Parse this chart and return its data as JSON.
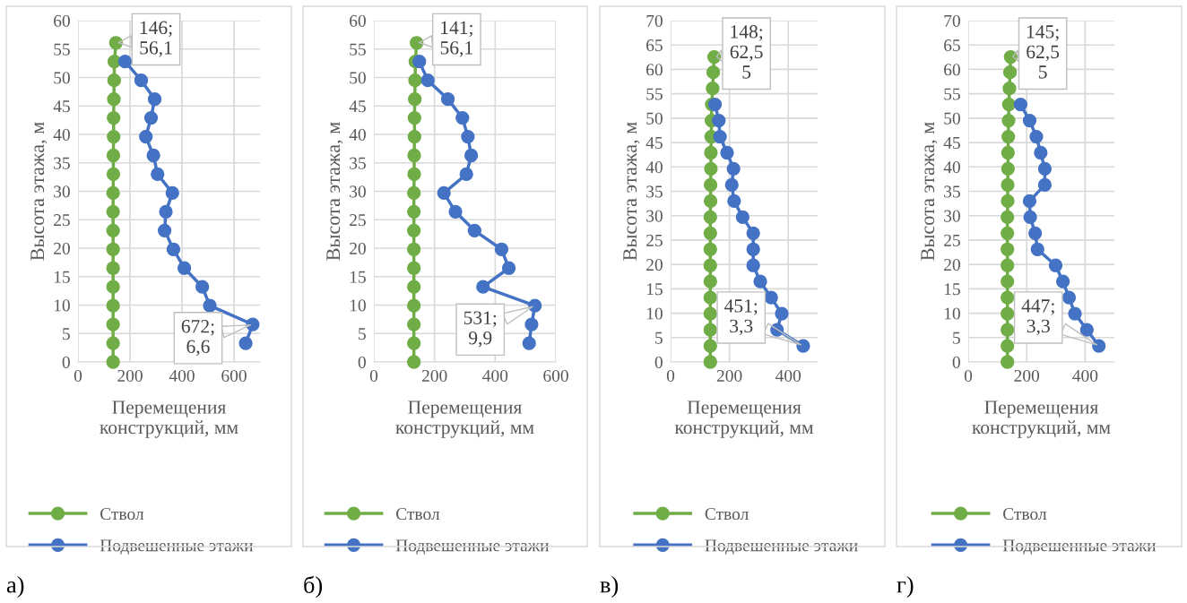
{
  "chart_data": [
    {
      "type": "line",
      "xlabel": "Перемещения\nконструкций, мм",
      "ylabel": "Высота этажа, м",
      "xlim": [
        0,
        700
      ],
      "xticks": [
        0,
        200,
        400,
        600
      ],
      "ylim": [
        0,
        60
      ],
      "yticks": [
        0,
        5,
        10,
        15,
        20,
        25,
        30,
        35,
        40,
        45,
        50,
        55,
        60
      ],
      "grid": true,
      "legend": "bottom",
      "marker": "circle",
      "series": [
        {
          "name": "Ствол",
          "color": "#70ad47",
          "x": [
            135,
            135,
            135,
            135,
            135,
            135,
            135,
            135,
            135,
            135,
            136,
            136,
            137,
            137,
            138,
            139,
            140,
            146
          ],
          "values": [
            0,
            3.3,
            6.6,
            9.9,
            13.2,
            16.5,
            19.8,
            23.1,
            26.4,
            29.7,
            33,
            36.3,
            39.6,
            42.9,
            46.2,
            49.5,
            52.8,
            56.1
          ]
        },
        {
          "name": "Подвешенные этажи",
          "color": "#4472c4",
          "x": [
            645,
            672,
            507,
            478,
            409,
            367,
            333,
            338,
            363,
            306,
            290,
            261,
            281,
            295,
            243,
            181
          ],
          "values": [
            3.3,
            6.6,
            9.9,
            13.2,
            16.5,
            19.8,
            23.1,
            26.4,
            29.7,
            33,
            36.3,
            39.6,
            42.9,
            46.2,
            49.5,
            52.8
          ]
        }
      ],
      "annotations": [
        {
          "text": "146;\n56,1",
          "x": 146,
          "y": 56.1
        },
        {
          "text": "672;\n6,6",
          "x": 672,
          "y": 6.6
        },
        "а)"
      ]
    },
    {
      "type": "line",
      "xlabel": "Перемещения\nконструкций, мм",
      "ylabel": "Высота этажа, м",
      "xlim": [
        0,
        600
      ],
      "xticks": [
        0,
        200,
        400,
        600
      ],
      "ylim": [
        0,
        60
      ],
      "yticks": [
        0,
        5,
        10,
        15,
        20,
        25,
        30,
        35,
        40,
        45,
        50,
        55,
        60
      ],
      "grid": true,
      "legend": "bottom",
      "marker": "circle",
      "series": [
        {
          "name": "Ствол",
          "color": "#70ad47",
          "x": [
            132,
            132,
            132,
            132,
            132,
            132,
            132,
            132,
            132,
            132,
            133,
            133,
            134,
            134,
            135,
            136,
            137,
            141
          ],
          "values": [
            0,
            3.3,
            6.6,
            9.9,
            13.2,
            16.5,
            19.8,
            23.1,
            26.4,
            29.7,
            33,
            36.3,
            39.6,
            42.9,
            46.2,
            49.5,
            52.8,
            56.1
          ]
        },
        {
          "name": "Подвешенные этажи",
          "color": "#4472c4",
          "x": [
            512,
            520,
            531,
            360,
            445,
            421,
            332,
            269,
            231,
            305,
            321,
            310,
            292,
            244,
            178,
            150
          ],
          "values": [
            3.3,
            6.6,
            9.9,
            13.2,
            16.5,
            19.8,
            23.1,
            26.4,
            29.7,
            33,
            36.3,
            39.6,
            42.9,
            46.2,
            49.5,
            52.8
          ]
        }
      ],
      "annotations": [
        {
          "text": "141;\n56,1",
          "x": 141,
          "y": 56.1
        },
        {
          "text": "531;\n9,9",
          "x": 531,
          "y": 9.9
        },
        "б)"
      ]
    },
    {
      "type": "line",
      "xlabel": "Перемещения\nконструкций, мм",
      "ylabel": "Высота этажа, м",
      "xlim": [
        0,
        500
      ],
      "xticks": [
        0,
        200,
        400
      ],
      "ylim": [
        0,
        70
      ],
      "yticks": [
        0,
        5,
        10,
        15,
        20,
        25,
        30,
        35,
        40,
        45,
        50,
        55,
        60,
        65,
        70
      ],
      "grid": true,
      "legend": "bottom",
      "marker": "circle",
      "series": [
        {
          "name": "Ствол",
          "color": "#70ad47",
          "x": [
            135,
            135,
            135,
            135,
            135,
            135,
            135,
            135,
            135,
            135,
            136,
            136,
            137,
            137,
            138,
            139,
            140,
            143,
            145,
            148
          ],
          "values": [
            0,
            3.3,
            6.6,
            9.9,
            13.2,
            16.5,
            19.8,
            23.1,
            26.4,
            29.7,
            33,
            36.3,
            39.6,
            42.9,
            46.2,
            49.5,
            52.8,
            56.1,
            59.4,
            62.55
          ]
        },
        {
          "name": "Подвешенные этажи",
          "color": "#4472c4",
          "x": [
            451,
            362,
            378,
            342,
            305,
            281,
            281,
            281,
            245,
            216,
            208,
            214,
            192,
            168,
            164,
            151
          ],
          "values": [
            3.3,
            6.6,
            9.9,
            13.2,
            16.5,
            19.8,
            23.1,
            26.4,
            29.7,
            33,
            36.3,
            39.6,
            42.9,
            46.2,
            49.5,
            52.8
          ]
        }
      ],
      "annotations": [
        {
          "text": "148;\n62,5\n5",
          "x": 148,
          "y": 62.55
        },
        {
          "text": "451;\n3,3",
          "x": 451,
          "y": 3.3
        },
        "в)"
      ]
    },
    {
      "type": "line",
      "xlabel": "Перемещения\nконструкций, мм",
      "ylabel": "Высота этажа, м",
      "xlim": [
        0,
        500
      ],
      "xticks": [
        0,
        200,
        400
      ],
      "ylim": [
        0,
        70
      ],
      "yticks": [
        0,
        5,
        10,
        15,
        20,
        25,
        30,
        35,
        40,
        45,
        50,
        55,
        60,
        65,
        70
      ],
      "grid": true,
      "legend": "bottom",
      "marker": "circle",
      "series": [
        {
          "name": "Ствол",
          "color": "#70ad47",
          "x": [
            134,
            134,
            134,
            134,
            134,
            134,
            134,
            134,
            134,
            134,
            135,
            135,
            136,
            136,
            137,
            138,
            139,
            141,
            143,
            145
          ],
          "values": [
            0,
            3.3,
            6.6,
            9.9,
            13.2,
            16.5,
            19.8,
            23.1,
            26.4,
            29.7,
            33,
            36.3,
            39.6,
            42.9,
            46.2,
            49.5,
            52.8,
            56.1,
            59.4,
            62.55
          ]
        },
        {
          "name": "Подвешенные этажи",
          "color": "#4472c4",
          "x": [
            447,
            406,
            365,
            345,
            324,
            299,
            237,
            229,
            212,
            210,
            262,
            262,
            248,
            233,
            210,
            179
          ],
          "values": [
            3.3,
            6.6,
            9.9,
            13.2,
            16.5,
            19.8,
            23.1,
            26.4,
            29.7,
            33,
            36.3,
            39.6,
            42.9,
            46.2,
            49.5,
            52.8
          ]
        }
      ],
      "annotations": [
        {
          "text": "145;\n62,5\n5",
          "x": 145,
          "y": 62.55
        },
        {
          "text": "447;\n3,3",
          "x": 447,
          "y": 3.3
        },
        "г)"
      ]
    }
  ]
}
